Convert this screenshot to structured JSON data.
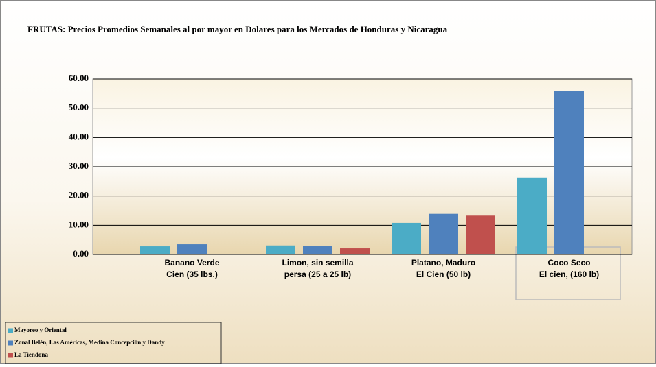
{
  "chart_data": {
    "type": "bar",
    "title": "FRUTAS:  Precios Promedios Semanales al por mayor en Dolares  para los Mercados de Honduras y Nicaragua",
    "categories": [
      [
        "Banano Verde",
        "Cien (35 lbs.)"
      ],
      [
        "Limon, sin semilla",
        "persa (25 a 25 lb)"
      ],
      [
        "Platano, Maduro",
        "El Cien (50 lb)"
      ],
      [
        "Coco Seco",
        "El cien, (160 lb)"
      ]
    ],
    "series": [
      {
        "name": "Mayoreo y Oriental",
        "color": "#4bacc6",
        "values": [
          2.8,
          3.1,
          10.8,
          26.3
        ]
      },
      {
        "name": "Zonal Belén, Las Américas, Medina Concepción y Dandy",
        "color": "#4f81bd",
        "values": [
          3.5,
          3.0,
          13.9,
          56.0
        ]
      },
      {
        "name": "La Tiendona",
        "color": "#c0504d",
        "values": [
          null,
          2.1,
          13.3,
          null
        ]
      }
    ],
    "ylim": [
      0,
      60
    ],
    "yticks": [
      {
        "value": 0,
        "label": "0.00"
      },
      {
        "value": 10,
        "label": "10.00"
      },
      {
        "value": 20,
        "label": "20.00"
      },
      {
        "value": 30,
        "label": "30.00"
      },
      {
        "value": 40,
        "label": "40.00"
      },
      {
        "value": 50,
        "label": "50.00"
      },
      {
        "value": 60,
        "label": "60.00"
      }
    ],
    "grid": true,
    "legend": "bottom-left"
  }
}
